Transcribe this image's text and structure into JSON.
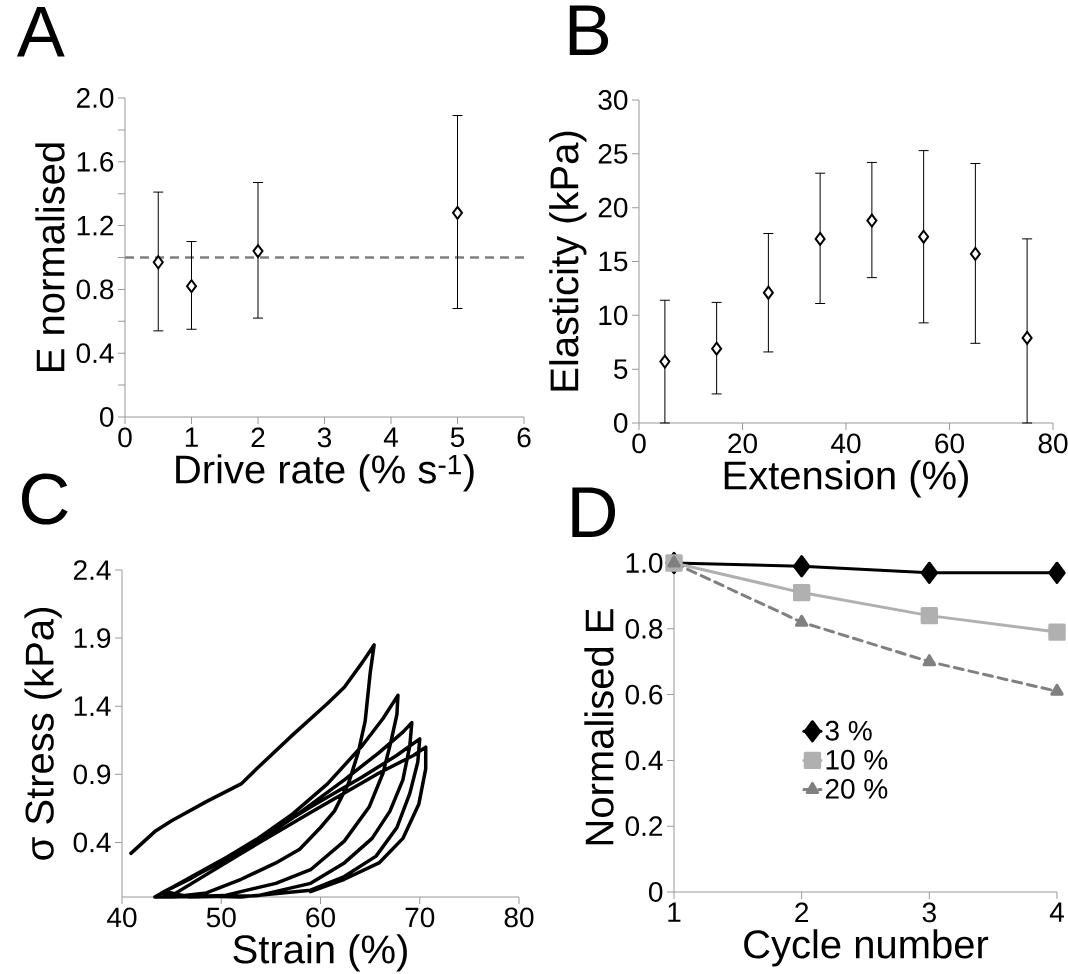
{
  "chart_data": [
    {
      "type": "scatter",
      "title": "A",
      "xlabel": "Drive rate (% s$^{-1}$)",
      "ylabel": "E normalised",
      "x": [
        0.5,
        1,
        2,
        5
      ],
      "values": [
        0.97,
        0.82,
        1.04,
        1.28
      ],
      "errors": [
        [
          0.54,
          1.41
        ],
        [
          0.55,
          1.1
        ],
        [
          0.62,
          1.47
        ],
        [
          0.68,
          1.89
        ]
      ],
      "color": "#000000",
      "marker": "diamond",
      "xlim": [
        0,
        6
      ],
      "ylim": [
        0,
        2
      ],
      "xticks": [
        0,
        1,
        2,
        3,
        4,
        5,
        6
      ],
      "yticks": [
        0,
        {
          "value": 0.2,
          "label": null
        },
        0.4,
        {
          "value": 0.6,
          "label": null
        },
        0.8,
        {
          "value": 1.0,
          "label": null
        },
        1.2,
        {
          "value": 1.4,
          "label": null
        },
        1.6,
        {
          "value": 1.8,
          "label": null
        },
        {
          "value": 2.0,
          "label": "2.0"
        }
      ],
      "ref_lines": [
        {
          "axis": "y",
          "value": 1,
          "color": "#808080",
          "line_style": "dashed"
        }
      ]
    },
    {
      "type": "scatter",
      "title": "B",
      "xlabel": "Extension (%)",
      "ylabel": "Elasticity (kPa)",
      "x": [
        5,
        15,
        25,
        35,
        45,
        55,
        65,
        75
      ],
      "values": [
        5.7,
        6.9,
        12.1,
        17.1,
        18.8,
        17.3,
        15.7,
        7.9
      ],
      "errors": [
        [
          0,
          11.4
        ],
        [
          2.7,
          11.2
        ],
        [
          6.6,
          17.6
        ],
        [
          11.1,
          23.2
        ],
        [
          13.5,
          24.2
        ],
        [
          9.3,
          25.3
        ],
        [
          7.4,
          24.1
        ],
        [
          0,
          17.1
        ]
      ],
      "color": "#000000",
      "marker": "diamond",
      "xlim": [
        0,
        80
      ],
      "ylim": [
        0,
        30
      ],
      "xticks": [
        0,
        20,
        40,
        60,
        80
      ],
      "yticks": [
        0,
        5,
        10,
        15,
        20,
        25,
        30
      ]
    },
    {
      "type": "line",
      "title": "C",
      "xlabel": "Strain (%)",
      "ylabel": "σ Stress (kPa)",
      "color": "#000000",
      "xlim": [
        40,
        80
      ],
      "ylim": [
        0,
        2.4
      ],
      "xticks": [
        40,
        50,
        60,
        70,
        80
      ],
      "yticks": [
        0.4,
        0.9,
        1.4,
        1.9,
        2.4
      ],
      "x": [
        40.9,
        43.3,
        45.0,
        48.5,
        52.0,
        53.7,
        57.2,
        60.7,
        62.4,
        64.2,
        65.4,
        65.0,
        64.5,
        63.8,
        62.8,
        61.4,
        60.0,
        57.9,
        55.5,
        52.0,
        48.5,
        45.0,
        43.3,
        44.3,
        46.8,
        50.3,
        53.7,
        57.2,
        60.7,
        64.2,
        66.3,
        67.8,
        67.7,
        67.1,
        66.3,
        64.9,
        62.4,
        59.0,
        55.5,
        50.3,
        45.0,
        44.0,
        52.0,
        57.2,
        62.4,
        65.9,
        68.3,
        69.2,
        69.0,
        68.3,
        67.0,
        65.2,
        62.4,
        59.0,
        53.7,
        46.8,
        44.3,
        52.0,
        59.0,
        64.2,
        67.7,
        70.0,
        69.8,
        69.0,
        67.7,
        65.6,
        62.4,
        59.0,
        52.0,
        45.0,
        52.0,
        59.0,
        65.9,
        69.4,
        70.6,
        70.6,
        69.9,
        68.3,
        65.9,
        62.4,
        59.0
      ],
      "values": [
        0.32,
        0.48,
        0.56,
        0.7,
        0.83,
        0.95,
        1.19,
        1.42,
        1.54,
        1.72,
        1.85,
        1.64,
        1.29,
        1.06,
        0.83,
        0.63,
        0.51,
        0.35,
        0.25,
        0.13,
        0.03,
        0.0,
        0.0,
        0.04,
        0.13,
        0.28,
        0.43,
        0.61,
        0.83,
        1.11,
        1.31,
        1.48,
        1.34,
        1.14,
        0.91,
        0.66,
        0.41,
        0.2,
        0.1,
        0.01,
        0.0,
        0.03,
        0.33,
        0.58,
        0.86,
        1.06,
        1.21,
        1.28,
        1.11,
        0.86,
        0.63,
        0.43,
        0.25,
        0.1,
        0.01,
        0.0,
        0.04,
        0.35,
        0.66,
        0.88,
        1.04,
        1.16,
        0.99,
        0.76,
        0.51,
        0.3,
        0.15,
        0.05,
        0.0,
        0.01,
        0.32,
        0.62,
        0.91,
        1.04,
        1.1,
        0.94,
        0.68,
        0.43,
        0.25,
        0.13,
        0.04
      ]
    },
    {
      "type": "line",
      "title": "D",
      "xlabel": "Cycle number",
      "ylabel": "Normalised E",
      "x": [
        1,
        2,
        3,
        4
      ],
      "xlim": [
        1,
        4
      ],
      "ylim": [
        0,
        1
      ],
      "xticks": [
        1,
        2,
        3,
        4
      ],
      "yticks": [
        0,
        0.2,
        0.4,
        0.6,
        0.8,
        {
          "value": 1.0,
          "label": "1.0"
        }
      ],
      "legend": "center",
      "series": [
        {
          "name": "3 %",
          "color": "#000000",
          "values": [
            1.0,
            0.99,
            0.97,
            0.97
          ],
          "marker": "diamond",
          "line_style": "solid"
        },
        {
          "name": "10 %",
          "color": "#b0b0b0",
          "values": [
            1.0,
            0.91,
            0.84,
            0.79
          ],
          "marker": "square",
          "line_style": "solid"
        },
        {
          "name": "20 %",
          "color": "#808080",
          "values": [
            1.0,
            0.82,
            0.7,
            0.61
          ],
          "marker": "triangle",
          "line_style": "dashed"
        }
      ]
    }
  ]
}
